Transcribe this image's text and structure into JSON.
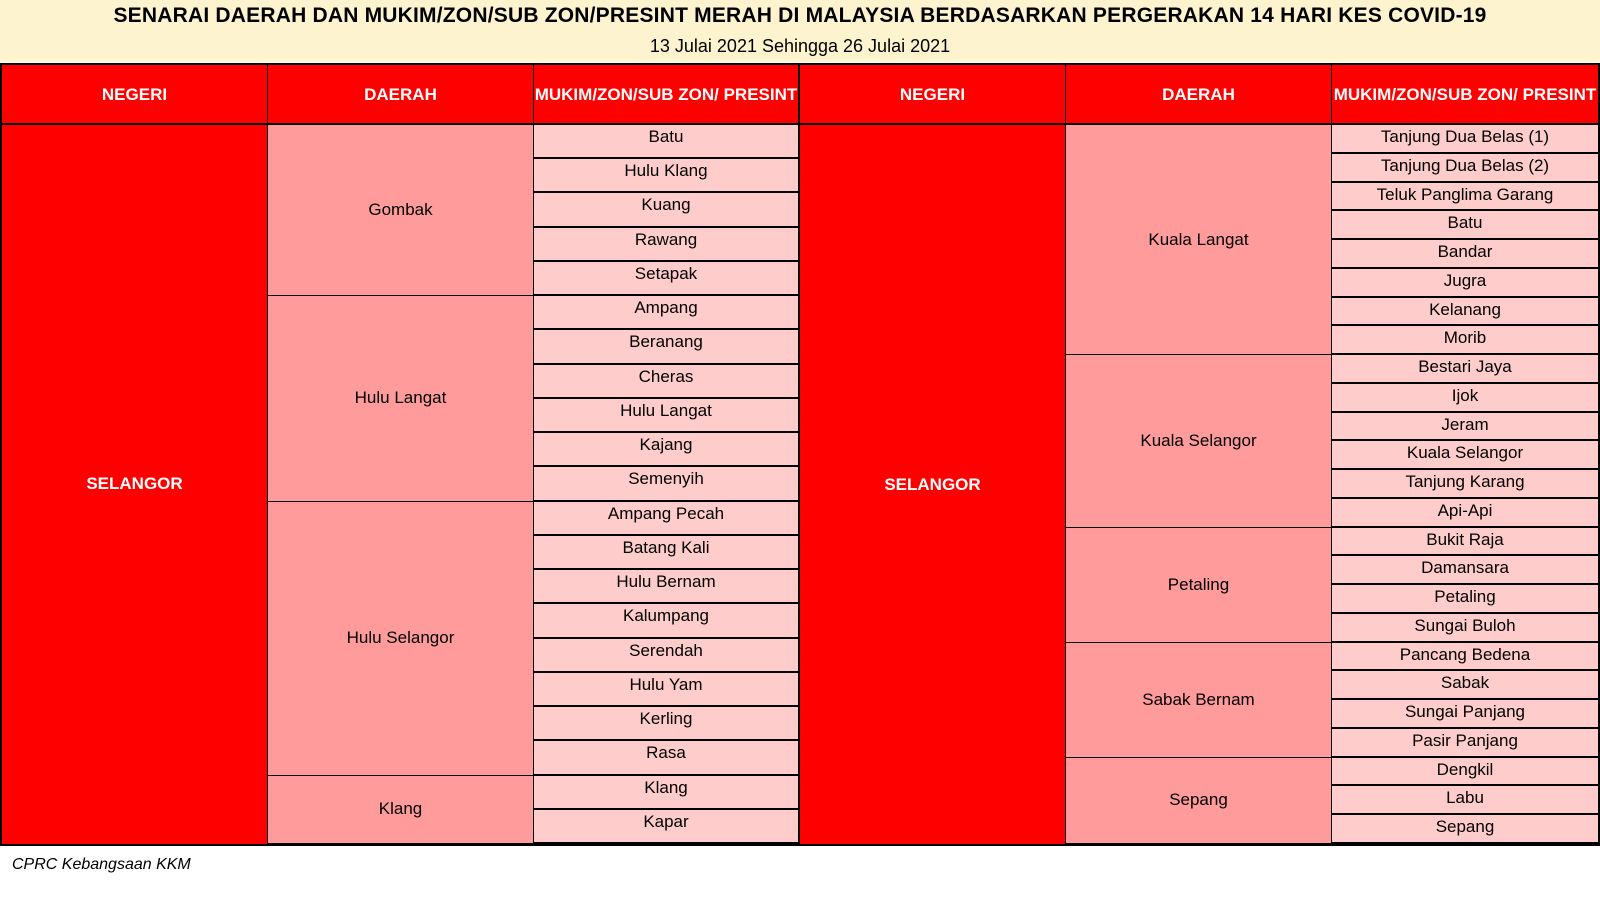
{
  "title": "SENARAI DAERAH DAN MUKIM/ZON/SUB ZON/PRESINT MERAH DI MALAYSIA BERDASARKAN PERGERAKAN 14 HARI KES COVID-19",
  "subtitle": "13 Julai 2021 Sehingga 26 Julai 2021",
  "headers": {
    "negeri": "NEGERI",
    "daerah": "DAERAH",
    "mukim": "MUKIM/ZON/SUB ZON/ PRESINT"
  },
  "footer": "CPRC Kebangsaan KKM",
  "colors": {
    "header_red": "#ff0000",
    "daerah_pink": "#ff9b9b",
    "mukim_pink": "#ffcccc",
    "banner": "#fdf3cf"
  },
  "tables": [
    {
      "negeri": "SELANGOR",
      "districts": [
        {
          "name": "Gombak",
          "mukims": [
            "Batu",
            "Hulu Klang",
            "Kuang",
            "Rawang",
            "Setapak"
          ]
        },
        {
          "name": "Hulu Langat",
          "mukims": [
            "Ampang",
            "Beranang",
            "Cheras",
            "Hulu Langat",
            "Kajang",
            "Semenyih"
          ]
        },
        {
          "name": "Hulu Selangor",
          "mukims": [
            "Ampang Pecah",
            "Batang Kali",
            "Hulu Bernam",
            "Kalumpang",
            "Serendah",
            "Hulu Yam",
            "Kerling",
            "Rasa"
          ]
        },
        {
          "name": "Klang",
          "mukims": [
            "Klang",
            "Kapar"
          ]
        }
      ]
    },
    {
      "negeri": "SELANGOR",
      "districts": [
        {
          "name": "Kuala Langat",
          "mukims": [
            "Tanjung Dua Belas (1)",
            "Tanjung Dua Belas (2)",
            "Teluk Panglima Garang",
            "Batu",
            "Bandar",
            "Jugra",
            "Kelanang",
            "Morib"
          ]
        },
        {
          "name": "Kuala Selangor",
          "mukims": [
            "Bestari Jaya",
            "Ijok",
            "Jeram",
            "Kuala Selangor",
            "Tanjung Karang",
            "Api-Api"
          ]
        },
        {
          "name": "Petaling",
          "mukims": [
            "Bukit Raja",
            "Damansara",
            "Petaling",
            "Sungai Buloh"
          ]
        },
        {
          "name": "Sabak Bernam",
          "mukims": [
            "Pancang Bedena",
            "Sabak",
            "Sungai Panjang",
            "Pasir Panjang"
          ]
        },
        {
          "name": "Sepang",
          "mukims": [
            "Dengkil",
            "Labu",
            "Sepang"
          ]
        }
      ]
    }
  ]
}
